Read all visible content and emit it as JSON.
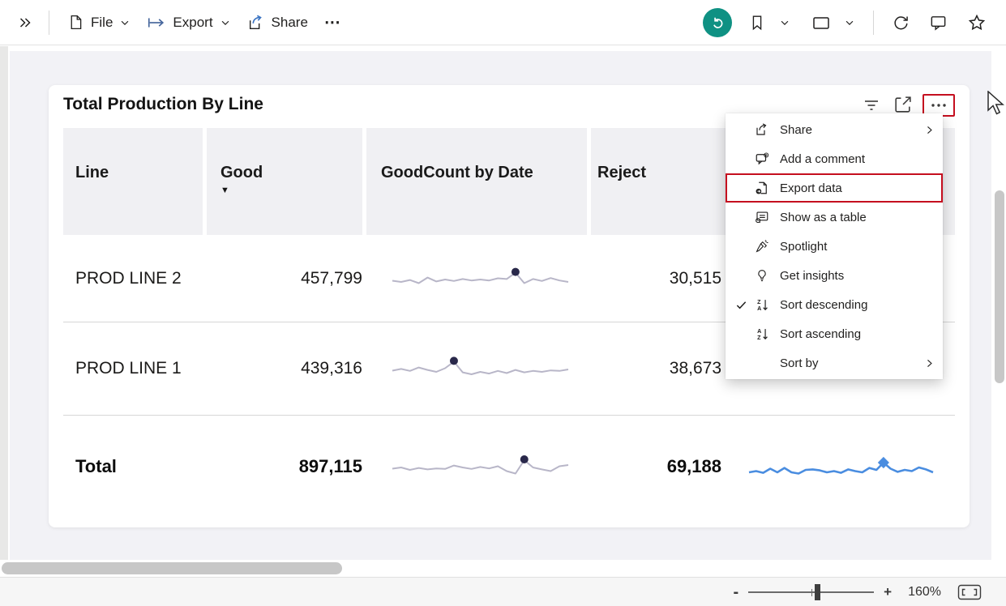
{
  "toolbar": {
    "file_label": "File",
    "export_label": "Export",
    "share_label": "Share",
    "more_glyph": "⋯"
  },
  "card": {
    "title": "Total Production By Line",
    "more_glyph": "•••"
  },
  "table": {
    "headers": {
      "line": "Line",
      "good": "Good",
      "goodcount": "GoodCount by Date",
      "reject": "Reject"
    },
    "sorted_column": "Good",
    "sort_direction": "descending",
    "sort_indicator": "▼",
    "rows": [
      {
        "line": "PROD LINE 2",
        "good": "457,799",
        "reject": "30,515"
      },
      {
        "line": "PROD LINE 1",
        "good": "439,316",
        "reject": "38,673"
      }
    ],
    "total": {
      "line": "Total",
      "good": "897,115",
      "reject": "69,188"
    }
  },
  "menu": {
    "items": [
      {
        "label": "Share",
        "icon": "share-icon",
        "submenu": true
      },
      {
        "label": "Add a comment",
        "icon": "add-comment-icon"
      },
      {
        "label": "Export data",
        "icon": "export-data-icon",
        "highlighted": true
      },
      {
        "label": "Show as a table",
        "icon": "show-as-table-icon"
      },
      {
        "label": "Spotlight",
        "icon": "spotlight-icon"
      },
      {
        "label": "Get insights",
        "icon": "get-insights-icon"
      },
      {
        "label": "Sort descending",
        "icon": "sort-descending-icon",
        "checked": true
      },
      {
        "label": "Sort ascending",
        "icon": "sort-ascending-icon"
      },
      {
        "label": "Sort by",
        "submenu": true
      }
    ]
  },
  "statusbar": {
    "zoom_out": "-",
    "zoom_in": "+",
    "zoom_level": "160%"
  },
  "colors": {
    "accent_red": "#C50F1F",
    "teal_button": "#0F9183",
    "spark_gray": "#B8B6C8",
    "spark_marker_navy": "#29284A",
    "spark_blue": "#4A8DE0"
  },
  "chart_data": {
    "type": "line",
    "note": "in-table sparklines; unlabeled relative values (0-1), marker on peak point",
    "sparklines": [
      {
        "name": "GoodCount by Date — PROD LINE 2",
        "target": "spark-good-row0",
        "color": "#B8B6C8",
        "marker_color": "#29284A",
        "marker": "circle",
        "marker_index": 14,
        "values": [
          0.45,
          0.4,
          0.48,
          0.35,
          0.58,
          0.42,
          0.5,
          0.44,
          0.52,
          0.46,
          0.5,
          0.46,
          0.55,
          0.52,
          0.78,
          0.35,
          0.52,
          0.44,
          0.56,
          0.46,
          0.4
        ]
      },
      {
        "name": "GoodCount by Date — PROD LINE 1",
        "target": "spark-good-row1",
        "color": "#B8B6C8",
        "marker_color": "#29284A",
        "marker": "circle",
        "marker_index": 7,
        "values": [
          0.45,
          0.52,
          0.44,
          0.58,
          0.48,
          0.4,
          0.55,
          0.82,
          0.38,
          0.3,
          0.4,
          0.33,
          0.44,
          0.35,
          0.48,
          0.38,
          0.44,
          0.4,
          0.46,
          0.44,
          0.5
        ]
      },
      {
        "name": "GoodCount by Date — Total",
        "target": "spark-good-total",
        "color": "#B8B6C8",
        "marker_color": "#29284A",
        "marker": "circle",
        "marker_index": 15,
        "values": [
          0.45,
          0.5,
          0.4,
          0.48,
          0.42,
          0.46,
          0.44,
          0.58,
          0.5,
          0.44,
          0.52,
          0.46,
          0.55,
          0.35,
          0.25,
          0.8,
          0.5,
          0.42,
          0.35,
          0.55,
          0.6
        ]
      },
      {
        "name": "RejectCount by Date — Total",
        "target": "spark-reject-total",
        "color": "#4A8DE0",
        "marker_color": "#4A8DE0",
        "marker": "diamond",
        "marker_index": 19,
        "values": [
          0.3,
          0.35,
          0.28,
          0.45,
          0.3,
          0.48,
          0.3,
          0.25,
          0.4,
          0.42,
          0.38,
          0.3,
          0.35,
          0.28,
          0.42,
          0.35,
          0.3,
          0.48,
          0.4,
          0.7,
          0.45,
          0.32,
          0.4,
          0.35,
          0.5,
          0.42,
          0.3
        ]
      }
    ]
  }
}
